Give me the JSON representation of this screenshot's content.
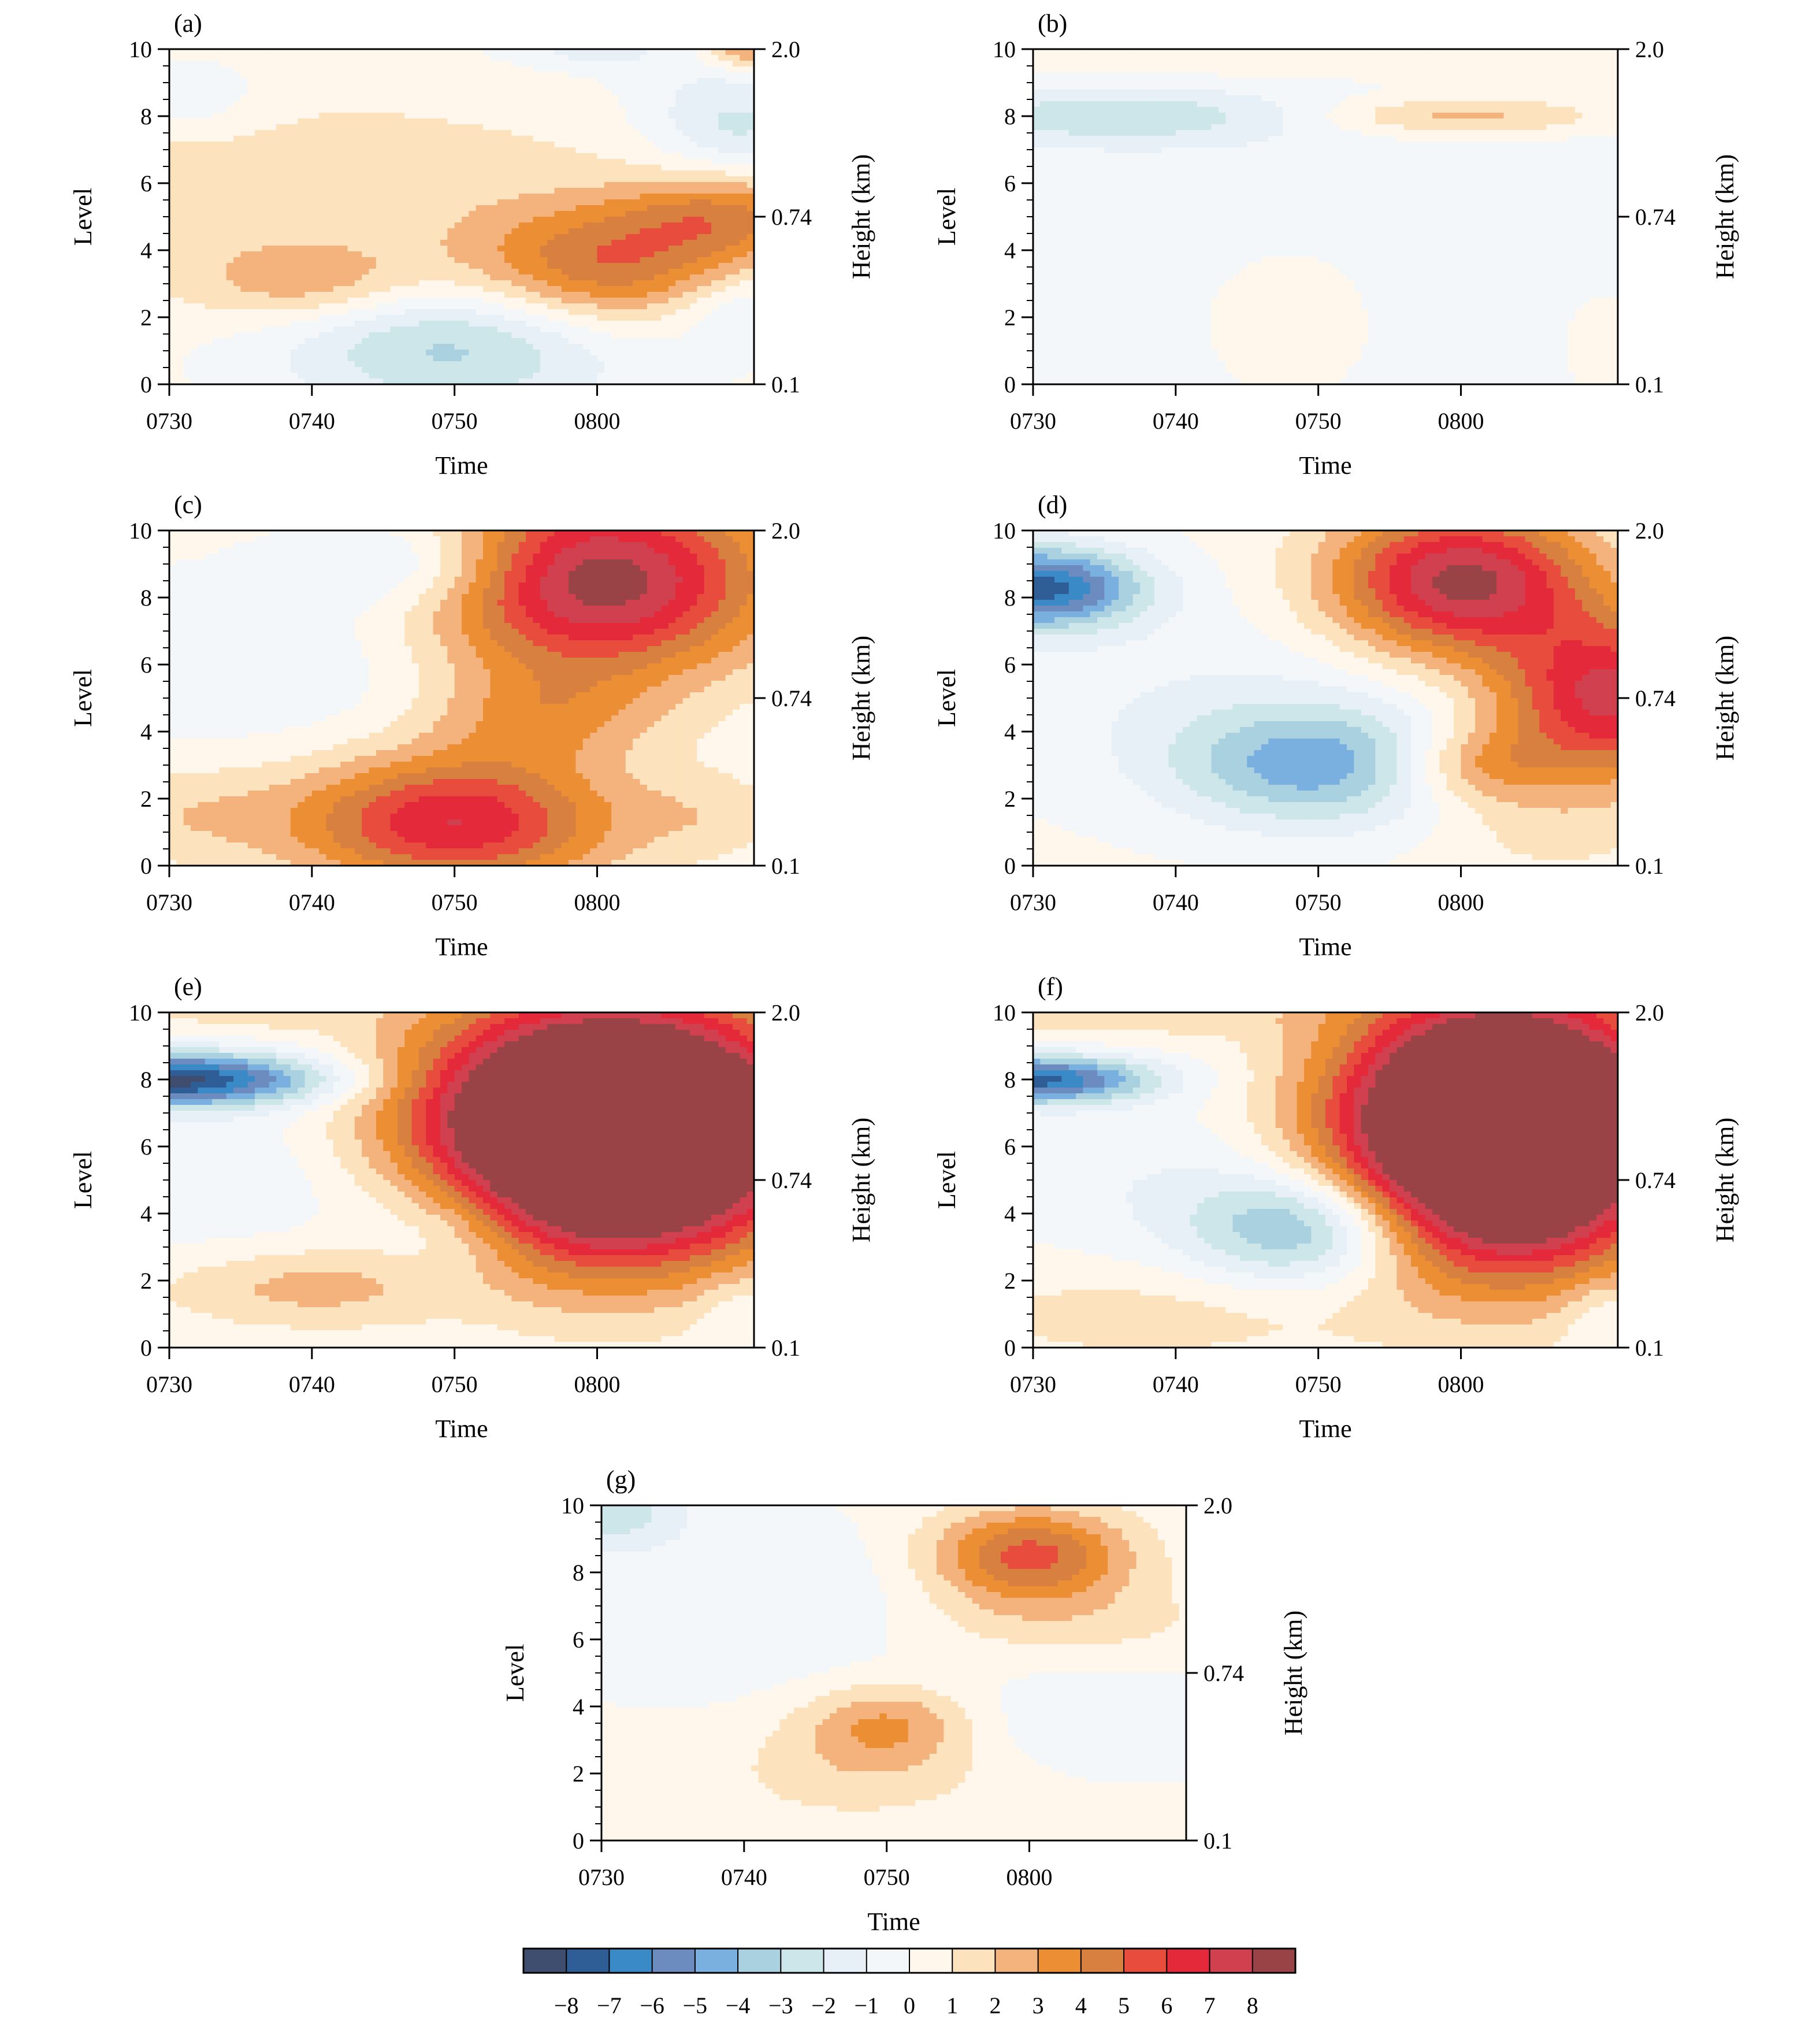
{
  "chart_data": {
    "type": "heatmap",
    "panels": [
      {
        "label": "(a)",
        "xlabel": "Time",
        "ylabel": "Level",
        "y2label": "Height (km)",
        "x_ticks": [
          "0730",
          "0740",
          "0750",
          "0800"
        ],
        "y_ticks": [
          0,
          2,
          4,
          6,
          8,
          10
        ],
        "y2_ticks": [
          "0.1",
          "0.74",
          "2.0"
        ],
        "blobs": [
          {
            "x": 0.2,
            "y": 6,
            "v": 1.5,
            "sx": 3.5,
            "sy": 3
          },
          {
            "x": 1.0,
            "y": 3,
            "v": 2.5,
            "sx": 0.8,
            "sy": 1.2
          },
          {
            "x": 2.0,
            "y": 1.2,
            "v": -3.6,
            "sx": 1.2,
            "sy": 2.0
          },
          {
            "x": 3.05,
            "y": 3.5,
            "v": 4.6,
            "sx": 1.0,
            "sy": 1.8
          },
          {
            "x": 3.9,
            "y": 5,
            "v": 3.0,
            "sx": 0.7,
            "sy": 1.2
          },
          {
            "x": 0.1,
            "y": 8.5,
            "v": -1.5,
            "sx": 0.6,
            "sy": 1.2
          },
          {
            "x": 4.0,
            "y": 7.5,
            "v": -2.2,
            "sx": 0.6,
            "sy": 1.2
          },
          {
            "x": 2.9,
            "y": 10,
            "v": -1.5,
            "sx": 0.6,
            "sy": 0.6
          },
          {
            "x": 4.05,
            "y": 10,
            "v": 3.5,
            "sx": 0.3,
            "sy": 0.6
          },
          {
            "x": 4.0,
            "y": 2.2,
            "v": -1.8,
            "sx": 0.5,
            "sy": 1.2
          },
          {
            "x": 3.9,
            "y": 9,
            "v": -1.2,
            "sx": 0.8,
            "sy": 1.5
          }
        ]
      },
      {
        "label": "(b)",
        "xlabel": "Time",
        "ylabel": "Level",
        "y2label": "Height (km)",
        "x_ticks": [
          "0730",
          "0740",
          "0750",
          "0800"
        ],
        "y_ticks": [
          0,
          2,
          4,
          6,
          8,
          10
        ],
        "y2_ticks": [
          "0.1",
          "0.74",
          "2.0"
        ],
        "blobs": [
          {
            "x": 2.0,
            "y": 4,
            "v": -1.1,
            "sx": 4.5,
            "sy": 5
          },
          {
            "x": 0.6,
            "y": 8,
            "v": -2.6,
            "sx": 1.3,
            "sy": 0.8
          },
          {
            "x": 3.0,
            "y": 8,
            "v": 2.6,
            "sx": 1.0,
            "sy": 0.6
          },
          {
            "x": 1.8,
            "y": 2.5,
            "v": 1.2,
            "sx": 0.8,
            "sy": 2.5
          },
          {
            "x": 2.3,
            "y": 9.8,
            "v": 1.0,
            "sx": 2.5,
            "sy": 0.6
          },
          {
            "x": 4.0,
            "y": 1.5,
            "v": 1.1,
            "sx": 0.3,
            "sy": 1.5
          }
        ]
      },
      {
        "label": "(c)",
        "xlabel": "Time",
        "ylabel": "Level",
        "y2label": "Height (km)",
        "x_ticks": [
          "0730",
          "0740",
          "0750",
          "0800"
        ],
        "y_ticks": [
          0,
          2,
          4,
          6,
          8,
          10
        ],
        "y2_ticks": [
          "0.1",
          "0.74",
          "2.0"
        ],
        "blobs": [
          {
            "x": 2.0,
            "y": 1.3,
            "v": 6.8,
            "sx": 1.1,
            "sy": 2.0
          },
          {
            "x": 3.0,
            "y": 8.5,
            "v": 8.6,
            "sx": 1.2,
            "sy": 2.8
          },
          {
            "x": 2.6,
            "y": 4.5,
            "v": 2.5,
            "sx": 0.8,
            "sy": 1.5
          },
          {
            "x": 1.8,
            "y": 9,
            "v": -2.8,
            "sx": 0.8,
            "sy": 1.4
          },
          {
            "x": 0.8,
            "y": 6,
            "v": -1.1,
            "sx": 1.5,
            "sy": 2.5
          },
          {
            "x": 0.1,
            "y": 1.5,
            "v": 1.5,
            "sx": 0.8,
            "sy": 1.5
          },
          {
            "x": 3.8,
            "y": 1.5,
            "v": 1.2,
            "sx": 0.6,
            "sy": 1.3
          }
        ]
      },
      {
        "label": "(d)",
        "xlabel": "Time",
        "ylabel": "Level",
        "y2label": "Height (km)",
        "x_ticks": [
          "0730",
          "0740",
          "0750",
          "0800"
        ],
        "y_ticks": [
          0,
          2,
          4,
          6,
          8,
          10
        ],
        "y2_ticks": [
          "0.1",
          "0.74",
          "2.0"
        ],
        "blobs": [
          {
            "x": 0.05,
            "y": 8.3,
            "v": -7.5,
            "sx": 0.7,
            "sy": 1.2
          },
          {
            "x": 2.0,
            "y": 3,
            "v": -4.5,
            "sx": 1.0,
            "sy": 1.8
          },
          {
            "x": 1.2,
            "y": 5,
            "v": -1.0,
            "sx": 1.8,
            "sy": 3.0
          },
          {
            "x": 3.0,
            "y": 8.5,
            "v": 8.2,
            "sx": 0.9,
            "sy": 2.2
          },
          {
            "x": 4.05,
            "y": 5,
            "v": 7.2,
            "sx": 0.8,
            "sy": 2.4
          },
          {
            "x": 3.1,
            "y": 3.0,
            "v": 3.2,
            "sx": 0.6,
            "sy": 1.2
          },
          {
            "x": 3.6,
            "y": 1.0,
            "v": 1.0,
            "sx": 0.8,
            "sy": 1.5
          }
        ]
      },
      {
        "label": "(e)",
        "xlabel": "Time",
        "ylabel": "Level",
        "y2label": "Height (km)",
        "x_ticks": [
          "0730",
          "0740",
          "0750",
          "0800"
        ],
        "y_ticks": [
          0,
          2,
          4,
          6,
          8,
          10
        ],
        "y2_ticks": [
          "0.1",
          "0.74",
          "2.0"
        ],
        "blobs": [
          {
            "x": 0.0,
            "y": 8.0,
            "v": -8.5,
            "sx": 1.1,
            "sy": 0.8
          },
          {
            "x": 3.1,
            "y": 6.5,
            "v": 18,
            "sx": 1.3,
            "sy": 3.6
          },
          {
            "x": 1.0,
            "y": 1.8,
            "v": 2.2,
            "sx": 1.1,
            "sy": 1.2
          },
          {
            "x": 2.0,
            "y": 3.5,
            "v": -2.2,
            "sx": 0.6,
            "sy": 2.0
          },
          {
            "x": 0.8,
            "y": 5,
            "v": -1.2,
            "sx": 1.5,
            "sy": 2.5
          },
          {
            "x": 4.0,
            "y": 1,
            "v": -1.0,
            "sx": 0.3,
            "sy": 1.2
          },
          {
            "x": 0.5,
            "y": 10,
            "v": 1.2,
            "sx": 0.8,
            "sy": 0.6
          }
        ]
      },
      {
        "label": "(f)",
        "xlabel": "Time",
        "ylabel": "Level",
        "y2label": "Height (km)",
        "x_ticks": [
          "0730",
          "0740",
          "0750",
          "0800"
        ],
        "y_ticks": [
          0,
          2,
          4,
          6,
          8,
          10
        ],
        "y2_ticks": [
          "0.1",
          "0.74",
          "2.0"
        ],
        "blobs": [
          {
            "x": 0.0,
            "y": 8.0,
            "v": -7.5,
            "sx": 0.8,
            "sy": 0.7
          },
          {
            "x": 1.95,
            "y": 3.6,
            "v": -5.2,
            "sx": 0.8,
            "sy": 1.7
          },
          {
            "x": 3.3,
            "y": 6.5,
            "v": 18,
            "sx": 1.1,
            "sy": 3.8
          },
          {
            "x": 0.5,
            "y": 10,
            "v": 1.5,
            "sx": 1.5,
            "sy": 0.8
          },
          {
            "x": 0.8,
            "y": 1,
            "v": 1.3,
            "sx": 1.5,
            "sy": 1.5
          },
          {
            "x": 4.0,
            "y": 1,
            "v": -1.2,
            "sx": 0.3,
            "sy": 1.0
          },
          {
            "x": 0.8,
            "y": 5,
            "v": -1.0,
            "sx": 1.0,
            "sy": 2.5
          }
        ]
      },
      {
        "label": "(g)",
        "xlabel": "Time",
        "ylabel": "Level",
        "y2label": "Height (km)",
        "x_ticks": [
          "0730",
          "0740",
          "0750",
          "0800"
        ],
        "y_ticks": [
          0,
          2,
          4,
          6,
          8,
          10
        ],
        "y2_ticks": [
          "0.1",
          "0.74",
          "2.0"
        ],
        "blobs": [
          {
            "x": 0.05,
            "y": 9.8,
            "v": -2.8,
            "sx": 0.5,
            "sy": 1.0
          },
          {
            "x": 1.0,
            "y": 7,
            "v": -1.2,
            "sx": 1.5,
            "sy": 2.5
          },
          {
            "x": 3.0,
            "y": 8.5,
            "v": 5.3,
            "sx": 0.7,
            "sy": 1.4
          },
          {
            "x": 2.0,
            "y": 3.5,
            "v": 2.8,
            "sx": 0.6,
            "sy": 1.2
          },
          {
            "x": 1.8,
            "y": 2.0,
            "v": 1.3,
            "sx": 1.0,
            "sy": 1.5
          },
          {
            "x": 3.5,
            "y": 3.5,
            "v": -1.1,
            "sx": 1.0,
            "sy": 1.5
          },
          {
            "x": 3.2,
            "y": 6.5,
            "v": 1.2,
            "sx": 1.2,
            "sy": 1.2
          }
        ]
      }
    ],
    "colorbar": {
      "ticks": [
        "−8",
        "−7",
        "−6",
        "−5",
        "−4",
        "−3",
        "−2",
        "−1",
        "0",
        "1",
        "2",
        "3",
        "4",
        "5",
        "6",
        "7",
        "8"
      ],
      "colors": [
        "#3f4e6e",
        "#2f5d96",
        "#3b8ac8",
        "#6c8cc0",
        "#79b0df",
        "#a9d1e0",
        "#cce6ea",
        "#e7f0f7",
        "#f3f7fa",
        "#fff7ec",
        "#fde3bd",
        "#f4b27c",
        "#ec8f34",
        "#d8803f",
        "#e74c3c",
        "#e3293a",
        "#d1404f",
        "#9a4347"
      ]
    }
  }
}
